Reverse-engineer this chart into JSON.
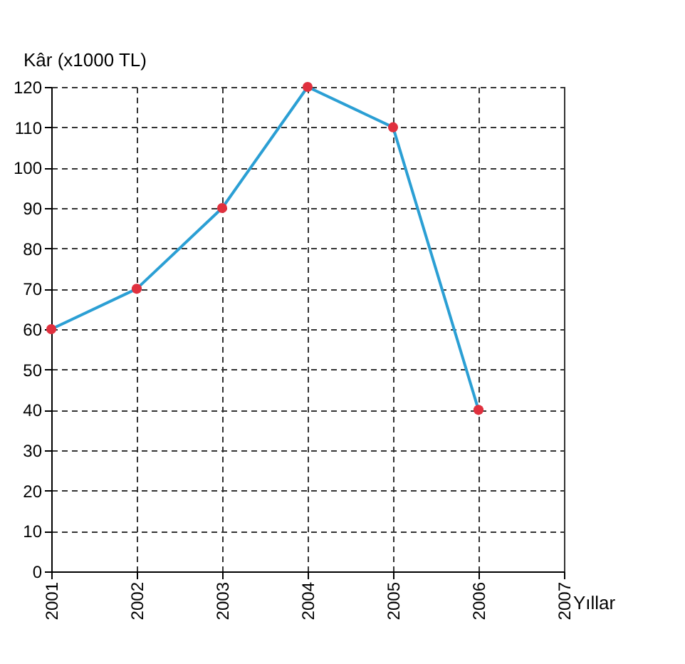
{
  "chart_data": {
    "type": "line",
    "xlabel": "Yıllar",
    "ylabel": "Kâr (x1000 TL)",
    "x": [
      2001,
      2002,
      2003,
      2004,
      2005,
      2006
    ],
    "series": [
      {
        "color": "#2b9fd4",
        "colors": [
          "#e0303e",
          "#e0303e",
          "#e0303e",
          "#e0303e",
          "#e0303e",
          "#e0303e"
        ],
        "values": [
          60,
          70,
          90,
          120,
          110,
          40
        ]
      }
    ],
    "xlim": [
      2001,
      2007
    ],
    "xticks": [
      2001,
      2002,
      2003,
      2004,
      2005,
      2006,
      2007
    ],
    "ylim": [
      0,
      120
    ],
    "yticks": [
      0,
      10,
      20,
      30,
      40,
      50,
      60,
      70,
      80,
      90,
      100,
      110,
      120
    ],
    "grid": true,
    "marker": "circle",
    "line_style": "solid"
  }
}
